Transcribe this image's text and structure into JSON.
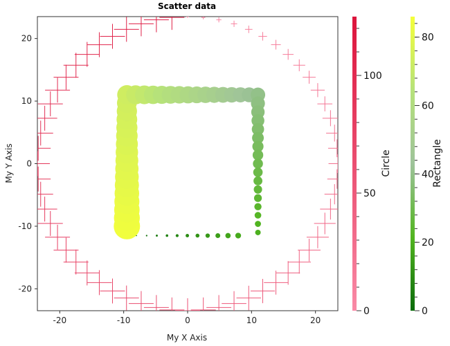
{
  "chart_data": {
    "type": "scatter",
    "title": "Scatter data",
    "xlabel": "My X Axis",
    "ylabel": "My Y Axis",
    "xlim": [
      -23.5,
      23.5
    ],
    "ylim": [
      -23.5,
      23.5
    ],
    "x_ticks": [
      -20,
      -10,
      0,
      10,
      20
    ],
    "y_ticks": [
      -20,
      -10,
      0,
      10,
      20
    ],
    "grid": false,
    "series": [
      {
        "name": "Circle",
        "marker": "cross",
        "shape": "circle-ring",
        "center": [
          0,
          0
        ],
        "radius": 23.5,
        "points": 60,
        "value_range": [
          0,
          117
        ],
        "colorbar": {
          "label": "Circle",
          "ticks": [
            0,
            50,
            100
          ],
          "range": [
            0,
            125
          ],
          "color_low": "#f98aa6",
          "color_high": "#dc143c"
        }
      },
      {
        "name": "Rectangle",
        "marker": "filled-circle",
        "shape": "square-path",
        "corners": [
          [
            -9.5,
            -10
          ],
          [
            -9.5,
            11
          ],
          [
            11,
            11
          ],
          [
            11,
            -11
          ]
        ],
        "bottom_edge": [
          [
            -8,
            -11.5
          ],
          [
            10,
            -11.5
          ]
        ],
        "value_range": [
          0,
          85
        ],
        "colorbar": {
          "label": "Rectangle",
          "ticks": [
            0,
            20,
            40,
            60,
            80
          ],
          "range": [
            0,
            86
          ],
          "color_stops": [
            "#0b6b0b",
            "#52b520",
            "#9ec39a",
            "#b6e27a",
            "#f4ff3a"
          ]
        }
      }
    ]
  }
}
